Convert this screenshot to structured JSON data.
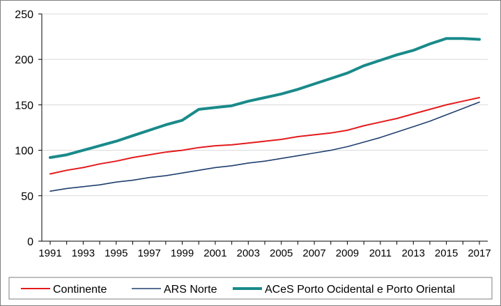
{
  "chart_data": {
    "type": "line",
    "title": "",
    "xlabel": "",
    "ylabel": "",
    "ylim": [
      0,
      250
    ],
    "yticks": [
      0,
      50,
      100,
      150,
      200,
      250
    ],
    "x": [
      1991,
      1992,
      1993,
      1994,
      1995,
      1996,
      1997,
      1998,
      1999,
      2000,
      2001,
      2002,
      2003,
      2004,
      2005,
      2006,
      2007,
      2008,
      2009,
      2010,
      2011,
      2012,
      2013,
      2014,
      2015,
      2016,
      2017
    ],
    "xtick_labels": [
      "1991",
      "1993",
      "1995",
      "1997",
      "1999",
      "2001",
      "2003",
      "2005",
      "2007",
      "2009",
      "2011",
      "2013",
      "2015",
      "2017"
    ],
    "grid": true,
    "legend_position": "bottom",
    "series": [
      {
        "name": "Continente",
        "color": "#e41a1c",
        "values": [
          74,
          78,
          81,
          85,
          88,
          92,
          95,
          98,
          100,
          103,
          105,
          106,
          108,
          110,
          112,
          115,
          117,
          119,
          122,
          127,
          131,
          135,
          140,
          145,
          150,
          154,
          158
        ]
      },
      {
        "name": "ARS Norte",
        "color": "#1f3f6e",
        "values": [
          55,
          58,
          60,
          62,
          65,
          67,
          70,
          72,
          75,
          78,
          81,
          83,
          86,
          88,
          91,
          94,
          97,
          100,
          104,
          109,
          114,
          120,
          126,
          132,
          139,
          146,
          153
        ]
      },
      {
        "name": "ACeS Porto Ocidental e Porto Oriental",
        "color": "#1a8a8a",
        "values": [
          92,
          95,
          100,
          105,
          110,
          116,
          122,
          128,
          133,
          145,
          147,
          149,
          154,
          158,
          162,
          167,
          173,
          179,
          185,
          193,
          199,
          205,
          210,
          217,
          223,
          223,
          222
        ]
      }
    ]
  }
}
